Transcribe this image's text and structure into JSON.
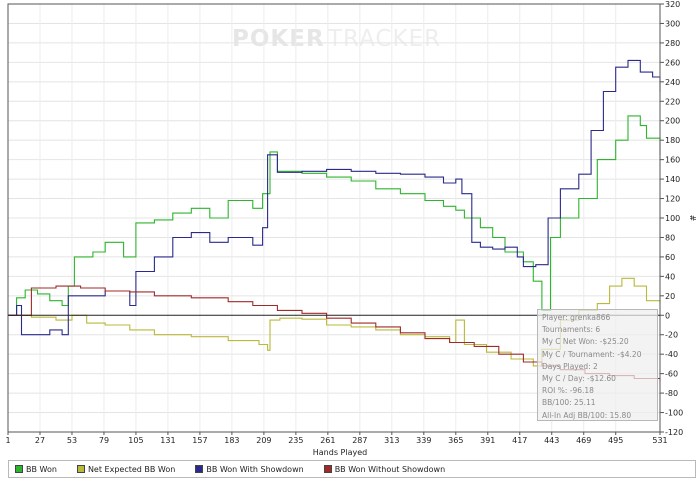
{
  "watermark": {
    "part1": "POKER",
    "part2": "TRACKER"
  },
  "chart_data": {
    "type": "line",
    "xlabel": "Hands Played",
    "ylabel": "#",
    "xlim": [
      1,
      531
    ],
    "ylim": [
      -120,
      320
    ],
    "x_ticks": [
      1,
      27,
      53,
      79,
      105,
      131,
      157,
      183,
      209,
      235,
      261,
      287,
      313,
      339,
      365,
      391,
      417,
      443,
      469,
      495,
      531
    ],
    "y_ticks": [
      -120,
      -100,
      -80,
      -60,
      -40,
      -20,
      0,
      20,
      40,
      60,
      80,
      100,
      120,
      140,
      160,
      180,
      200,
      220,
      240,
      260,
      280,
      300,
      320
    ],
    "series": [
      {
        "name": "BB Won",
        "color": "#2db52d",
        "points": [
          [
            1,
            0
          ],
          [
            8,
            18
          ],
          [
            15,
            26
          ],
          [
            25,
            22
          ],
          [
            35,
            15
          ],
          [
            45,
            10
          ],
          [
            50,
            30
          ],
          [
            55,
            60
          ],
          [
            70,
            65
          ],
          [
            80,
            75
          ],
          [
            95,
            60
          ],
          [
            105,
            95
          ],
          [
            120,
            98
          ],
          [
            135,
            105
          ],
          [
            150,
            110
          ],
          [
            165,
            100
          ],
          [
            180,
            118
          ],
          [
            200,
            110
          ],
          [
            208,
            125
          ],
          [
            214,
            168
          ],
          [
            220,
            148
          ],
          [
            240,
            146
          ],
          [
            260,
            142
          ],
          [
            280,
            138
          ],
          [
            300,
            130
          ],
          [
            320,
            125
          ],
          [
            340,
            118
          ],
          [
            355,
            112
          ],
          [
            365,
            108
          ],
          [
            372,
            100
          ],
          [
            385,
            90
          ],
          [
            395,
            80
          ],
          [
            405,
            65
          ],
          [
            420,
            55
          ],
          [
            428,
            35
          ],
          [
            435,
            5
          ],
          [
            442,
            80
          ],
          [
            450,
            100
          ],
          [
            465,
            120
          ],
          [
            480,
            160
          ],
          [
            495,
            180
          ],
          [
            505,
            205
          ],
          [
            515,
            195
          ],
          [
            520,
            182
          ],
          [
            531,
            165
          ]
        ]
      },
      {
        "name": "Net Expected BB Won",
        "color": "#b9b93a",
        "points": [
          [
            1,
            0
          ],
          [
            20,
            -2
          ],
          [
            40,
            -5
          ],
          [
            53,
            0
          ],
          [
            65,
            -8
          ],
          [
            80,
            -10
          ],
          [
            100,
            -15
          ],
          [
            120,
            -20
          ],
          [
            150,
            -22
          ],
          [
            180,
            -26
          ],
          [
            205,
            -30
          ],
          [
            212,
            -36
          ],
          [
            214,
            -5
          ],
          [
            222,
            -3
          ],
          [
            240,
            -4
          ],
          [
            260,
            -10
          ],
          [
            280,
            -12
          ],
          [
            300,
            -15
          ],
          [
            320,
            -20
          ],
          [
            340,
            -22
          ],
          [
            360,
            -28
          ],
          [
            365,
            -5
          ],
          [
            372,
            -30
          ],
          [
            390,
            -38
          ],
          [
            410,
            -45
          ],
          [
            428,
            -52
          ],
          [
            435,
            -35
          ],
          [
            450,
            -5
          ],
          [
            465,
            5
          ],
          [
            480,
            12
          ],
          [
            490,
            30
          ],
          [
            500,
            38
          ],
          [
            510,
            30
          ],
          [
            520,
            15
          ],
          [
            531,
            12
          ]
        ]
      },
      {
        "name": "BB Won With Showdown",
        "color": "#2a2a8c",
        "points": [
          [
            1,
            0
          ],
          [
            8,
            10
          ],
          [
            12,
            -20
          ],
          [
            25,
            -20
          ],
          [
            35,
            -15
          ],
          [
            45,
            -20
          ],
          [
            50,
            20
          ],
          [
            65,
            20
          ],
          [
            80,
            25
          ],
          [
            100,
            10
          ],
          [
            105,
            45
          ],
          [
            120,
            60
          ],
          [
            135,
            80
          ],
          [
            150,
            85
          ],
          [
            165,
            75
          ],
          [
            180,
            80
          ],
          [
            200,
            72
          ],
          [
            208,
            90
          ],
          [
            212,
            165
          ],
          [
            220,
            147
          ],
          [
            240,
            148
          ],
          [
            260,
            150
          ],
          [
            280,
            148
          ],
          [
            300,
            146
          ],
          [
            320,
            145
          ],
          [
            340,
            142
          ],
          [
            355,
            136
          ],
          [
            365,
            140
          ],
          [
            370,
            125
          ],
          [
            378,
            75
          ],
          [
            385,
            70
          ],
          [
            395,
            68
          ],
          [
            405,
            70
          ],
          [
            415,
            60
          ],
          [
            420,
            50
          ],
          [
            430,
            52
          ],
          [
            440,
            100
          ],
          [
            450,
            130
          ],
          [
            465,
            145
          ],
          [
            475,
            190
          ],
          [
            485,
            230
          ],
          [
            495,
            255
          ],
          [
            505,
            262
          ],
          [
            515,
            250
          ],
          [
            525,
            245
          ],
          [
            531,
            230
          ]
        ]
      },
      {
        "name": "BB Won Without Showdown",
        "color": "#a02a2a",
        "points": [
          [
            1,
            0
          ],
          [
            20,
            28
          ],
          [
            40,
            30
          ],
          [
            60,
            28
          ],
          [
            80,
            25
          ],
          [
            100,
            24
          ],
          [
            120,
            20
          ],
          [
            150,
            18
          ],
          [
            180,
            14
          ],
          [
            200,
            10
          ],
          [
            220,
            5
          ],
          [
            240,
            2
          ],
          [
            260,
            -3
          ],
          [
            280,
            -8
          ],
          [
            300,
            -12
          ],
          [
            320,
            -18
          ],
          [
            340,
            -24
          ],
          [
            360,
            -28
          ],
          [
            380,
            -32
          ],
          [
            400,
            -40
          ],
          [
            420,
            -48
          ],
          [
            435,
            -52
          ],
          [
            450,
            -56
          ],
          [
            470,
            -60
          ],
          [
            490,
            -62
          ],
          [
            510,
            -65
          ],
          [
            531,
            -68
          ]
        ]
      }
    ]
  },
  "legend": [
    {
      "label": "BB Won",
      "color": "#2db52d"
    },
    {
      "label": "Net Expected BB Won",
      "color": "#b9b93a"
    },
    {
      "label": "BB Won With Showdown",
      "color": "#2a2a8c"
    },
    {
      "label": "BB Won Without Showdown",
      "color": "#a02a2a"
    }
  ],
  "info_box": {
    "player": "Player: grenka866",
    "tournaments": "Tournaments: 6",
    "net_won": "My C Net Won: -$25.20",
    "per_tournament": "My C / Tournament: -$4.20",
    "days_played": "Days Played: 2",
    "per_day": "My C / Day: -$12.60",
    "roi": "ROI %: -96.18",
    "bb100": "BB/100: 25.11",
    "allin_bb100": "All-In Adj BB/100: 15.80"
  }
}
